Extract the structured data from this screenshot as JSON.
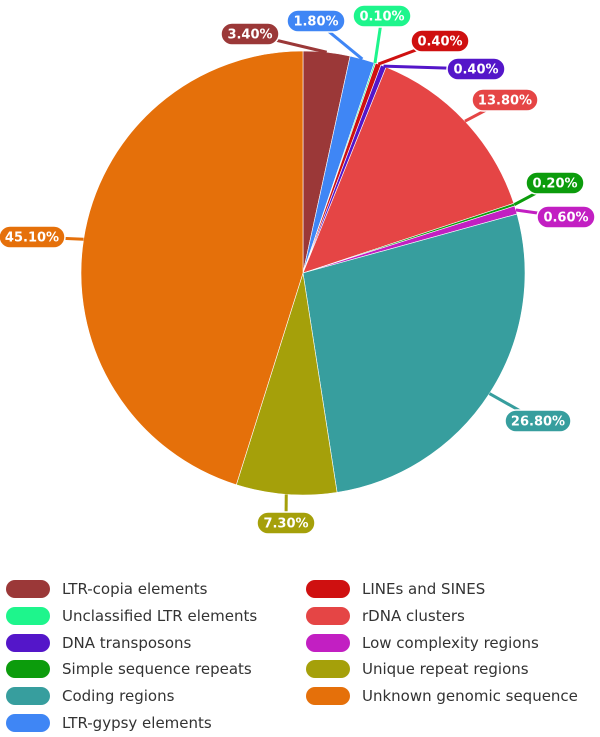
{
  "chart_data": {
    "type": "pie",
    "title": "",
    "start_angle_deg": 0,
    "direction": "clockwise",
    "slices": [
      {
        "name": "LTR-copia elements",
        "value": 3.4,
        "label": "3.40%",
        "color": "#9b3838"
      },
      {
        "name": "LTR-gypsy elements",
        "value": 1.8,
        "label": "1.80%",
        "color": "#3f86f5"
      },
      {
        "name": "Unclassified LTR elements",
        "value": 0.1,
        "label": "0.10%",
        "color": "#1ef58c"
      },
      {
        "name": "LINEs and SINES",
        "value": 0.4,
        "label": "0.40%",
        "color": "#cf1010"
      },
      {
        "name": "DNA transposons",
        "value": 0.4,
        "label": "0.40%",
        "color": "#5416c9"
      },
      {
        "name": "rDNA clusters",
        "value": 13.8,
        "label": "13.80%",
        "color": "#e54545"
      },
      {
        "name": "Simple sequence repeats",
        "value": 0.2,
        "label": "0.20%",
        "color": "#0c9c0c"
      },
      {
        "name": "Low complexity regions",
        "value": 0.6,
        "label": "0.60%",
        "color": "#c21fc2"
      },
      {
        "name": "Coding regions",
        "value": 26.8,
        "label": "26.80%",
        "color": "#379e9e"
      },
      {
        "name": "Unique repeat regions",
        "value": 7.3,
        "label": "7.30%",
        "color": "#a5a00a"
      },
      {
        "name": "Unknown genomic sequence",
        "value": 45.1,
        "label": "45.10%",
        "color": "#e5700a"
      }
    ],
    "legend_placement": "bottom",
    "legend": [
      {
        "label": "LTR-copia elements",
        "color": "#9b3838"
      },
      {
        "label": "Unclassified LTR elements",
        "color": "#1ef58c"
      },
      {
        "label": "DNA transposons",
        "color": "#5416c9"
      },
      {
        "label": "Simple sequence repeats",
        "color": "#0c9c0c"
      },
      {
        "label": "Coding regions",
        "color": "#379e9e"
      },
      {
        "label": "LTR-gypsy elements",
        "color": "#3f86f5"
      },
      {
        "label": "LINEs and SINES",
        "color": "#cf1010"
      },
      {
        "label": "rDNA clusters",
        "color": "#e54545"
      },
      {
        "label": "Low complexity regions",
        "color": "#c21fc2"
      },
      {
        "label": "Unique repeat regions",
        "color": "#a5a00a"
      },
      {
        "label": "Unknown genomic sequence",
        "color": "#e5700a"
      }
    ]
  }
}
